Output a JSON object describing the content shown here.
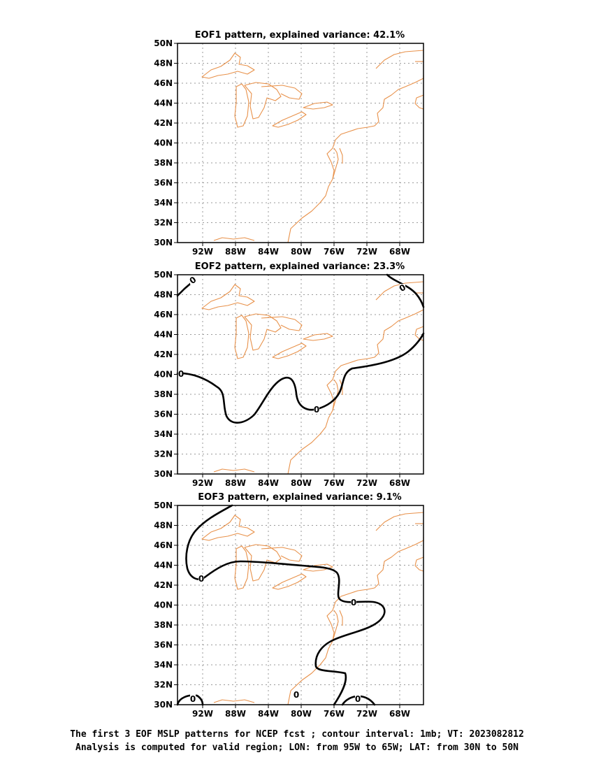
{
  "panels": [
    {
      "title": "EOF1 pattern, explained variance: 42.1%"
    },
    {
      "title": "EOF2 pattern, explained variance: 23.3%"
    },
    {
      "title": "EOF3 pattern, explained variance: 9.1%"
    }
  ],
  "lat_ticks": [
    "50N",
    "48N",
    "46N",
    "44N",
    "42N",
    "40N",
    "38N",
    "36N",
    "34N",
    "32N",
    "30N"
  ],
  "lon_ticks": [
    "92W",
    "88W",
    "84W",
    "80W",
    "76W",
    "72W",
    "68W"
  ],
  "contour_label": "0",
  "caption": {
    "line1": "The first 3 EOF MSLP patterns for NCEP fcst ; contour interval: 1mb; VT: 2023082812",
    "line2": "Analysis is computed for valid region; LON: from 95W to 65W; LAT: from 30N to 50N"
  },
  "colors": {
    "coastline": "#e8914a",
    "contour": "#000000",
    "grid": "#9a9a9a"
  }
}
